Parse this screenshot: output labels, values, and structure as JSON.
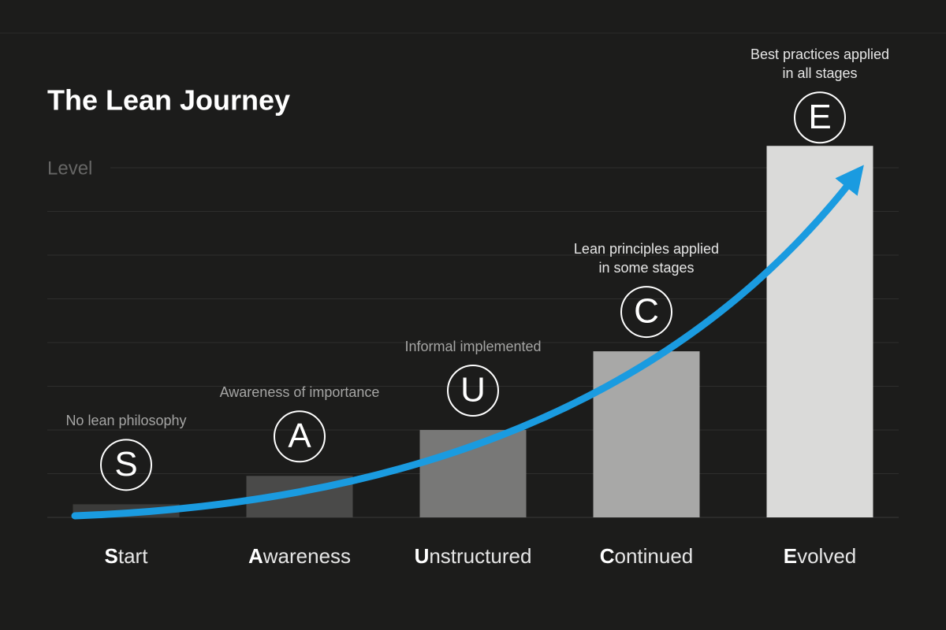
{
  "chart_data": {
    "type": "bar",
    "title": "The Lean Journey",
    "y_label": "Level",
    "categories": [
      "Start",
      "Awareness",
      "Unstructured",
      "Continued",
      "Evolved"
    ],
    "letters": [
      "S",
      "A",
      "U",
      "C",
      "E"
    ],
    "descriptions": [
      [
        "No lean philosophy"
      ],
      [
        "Awareness of importance"
      ],
      [
        "Informal implemented"
      ],
      [
        "Lean principles applied",
        "in some stages"
      ],
      [
        "Best practices applied",
        "in all stages"
      ]
    ],
    "values": [
      0.3,
      0.95,
      2,
      3.8,
      8.5
    ],
    "colors": [
      "#3b3b3a",
      "#4a4a49",
      "#787877",
      "#a8a8a7",
      "#dadad9"
    ],
    "ylim": [
      0,
      8.5
    ],
    "yticks": [
      0,
      1,
      2,
      3,
      4,
      5,
      6,
      7,
      8
    ],
    "grid": true
  }
}
